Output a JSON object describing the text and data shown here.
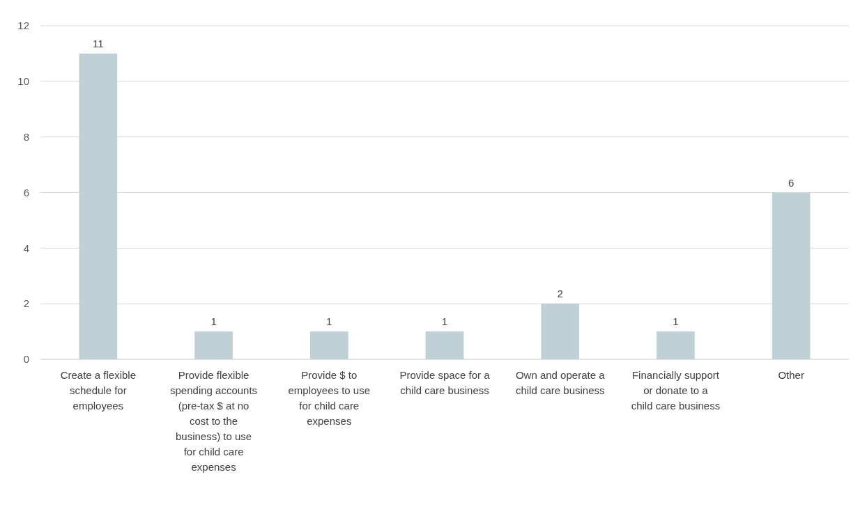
{
  "chart_data": {
    "type": "bar",
    "categories": [
      "Create a flexible schedule for employees",
      "Provide flexible spending accounts (pre-tax $ at no cost to the business) to use for child care expenses",
      "Provide $ to employees to use for child care expenses",
      "Provide space for a child care business",
      "Own and operate a child care business",
      "Financially support or donate to a child care business",
      "Other"
    ],
    "values": [
      11,
      1,
      1,
      1,
      2,
      1,
      6
    ],
    "color": "#bfd1d6",
    "ylim": [
      0,
      12
    ],
    "yticks": [
      0,
      2,
      4,
      6,
      8,
      10,
      12
    ],
    "grid": "y",
    "data_labels": true
  }
}
